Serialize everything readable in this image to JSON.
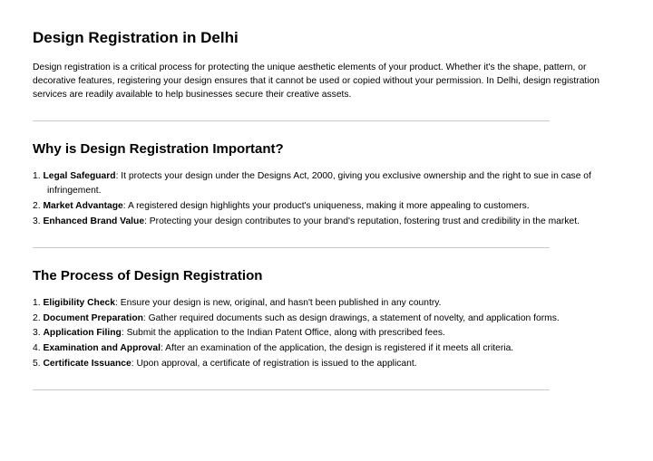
{
  "title": "Design Registration in Delhi",
  "intro": "Design registration is a critical process for protecting the unique aesthetic elements of your product. Whether it's the shape, pattern, or decorative features, registering your design ensures that it cannot be used or copied without your permission. In Delhi, design registration services are readily available to help businesses secure their creative assets.",
  "section1": {
    "heading": "Why is Design Registration Important?",
    "items": [
      {
        "term": "Legal Safeguard",
        "desc": ": It protects your design under the Designs Act, 2000, giving you exclusive ownership and the right to sue in case of infringement."
      },
      {
        "term": "Market Advantage",
        "desc": ": A registered design highlights your product's uniqueness, making it more appealing to customers."
      },
      {
        "term": "Enhanced Brand Value",
        "desc": ": Protecting your design contributes to your brand's reputation, fostering trust and credibility in the market."
      }
    ]
  },
  "section2": {
    "heading": "The Process of Design Registration",
    "items": [
      {
        "term": "Eligibility Check",
        "desc": ": Ensure your design is new, original, and hasn't been published in any country."
      },
      {
        "term": "Document Preparation",
        "desc": ": Gather required documents such as design drawings, a statement of novelty, and application forms."
      },
      {
        "term": "Application Filing",
        "desc": ": Submit the application to the Indian Patent Office, along with prescribed fees."
      },
      {
        "term": "Examination and Approval",
        "desc": ": After an examination of the application, the design is registered if it meets all criteria."
      },
      {
        "term": "Certificate Issuance",
        "desc": ": Upon approval, a certificate of registration is issued to the applicant."
      }
    ]
  }
}
